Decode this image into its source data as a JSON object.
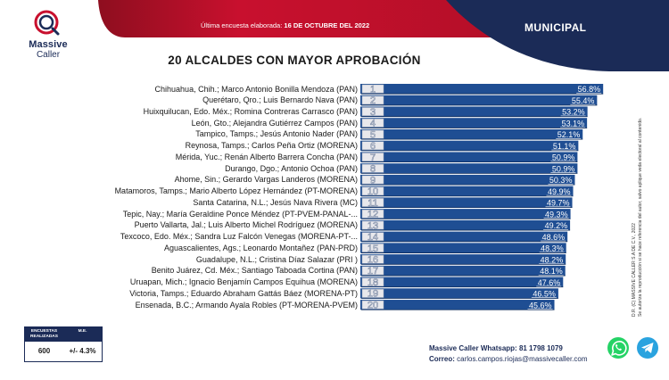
{
  "header": {
    "caption_text": "Última encuesta elaborada:",
    "caption_date": "16 DE OCTUBRE DEL 2022",
    "scope": "MUNICIPAL",
    "colors": {
      "red": "#c8102e",
      "navy": "#1b2b57",
      "bar": "#1f4e93"
    }
  },
  "logo": {
    "line1": "Massive",
    "line2": "Caller",
    "icon": "logo-icon"
  },
  "title": "20 ALCALDES CON MAYOR APROBACIÓN",
  "side_note": {
    "line1": "D.R. (C) MASSIVE CALLER S.A DE C.V., 2022",
    "line2": "Se autoriza la reproducción si se hace referencia del autor, salvo aplique veda electoral al contenido."
  },
  "survey": {
    "col1_label": "ENCUESTAS REALIZADAS",
    "col2_label": "M.E.",
    "col1_value": "600",
    "col2_value": "+/- 4.3%"
  },
  "contact": {
    "whatsapp_label": "Massive Caller Whatsapp:",
    "whatsapp_number": "81 1798 1079",
    "email_label": "Correo:",
    "email_value": "carlos.campos.riojas@massivecaller.com",
    "icons": [
      "whatsapp-icon",
      "telegram-icon"
    ]
  },
  "chart_data": {
    "type": "bar",
    "orientation": "horizontal",
    "title": "20 ALCALDES CON MAYOR APROBACIÓN",
    "categories": [
      "Chihuahua, Chih.; Marco Antonio Bonilla Mendoza (PAN)",
      "Querétaro, Qro.; Luis Bernardo Nava (PAN)",
      "Huixquilucan, Edo. Méx.; Romina Contreras Carrasco (PAN)",
      "León, Gto.; Alejandra Gutiérrez Campos (PAN)",
      "Tampico, Tamps.; Jesús Antonio Nader (PAN)",
      "Reynosa, Tamps.; Carlos Peña Ortiz (MORENA)",
      "Mérida, Yuc.; Renán Alberto Barrera Concha (PAN)",
      "Durango, Dgo.; Antonio Ochoa (PAN)",
      "Ahome, Sin.; Gerardo Vargas Landeros (MORENA)",
      "Matamoros, Tamps.; Mario Alberto López Hernández (PT-MORENA)",
      "Santa Catarina, N.L.; Jesús Nava Rivera (MC)",
      "Tepic, Nay.; María Geraldine Ponce Méndez (PT-PVEM-PANAL-...",
      "Puerto Vallarta, Jal.; Luis Alberto Michel Rodríguez (MORENA)",
      "Texcoco, Edo. Méx.; Sandra Luz Falcón Venegas (MORENA-PT-...",
      "Aguascalientes, Ags.; Leonardo Montañez (PAN-PRD)",
      "Guadalupe, N.L.; Cristina Díaz Salazar (PRI )",
      "Benito Juárez, Cd. Méx.; Santiago Taboada Cortina (PAN)",
      "Uruapan, Mich.; Ignacio Benjamín Campos Equihua (MORENA)",
      "Victoria, Tamps.; Eduardo Abraham Gattás Báez (MORENA-PT)",
      "Ensenada, B.C.; Armando Ayala Robles (PT-MORENA-PVEM)"
    ],
    "ranks": [
      "1",
      "2",
      "3",
      "4",
      "5",
      "6",
      "7",
      "8",
      "9",
      "10",
      "11",
      "12",
      "13",
      "14",
      "15",
      "16",
      "17",
      "18",
      "19",
      "20"
    ],
    "values": [
      56.8,
      55.4,
      53.2,
      53.1,
      52.1,
      51.1,
      50.9,
      50.9,
      50.3,
      49.9,
      49.7,
      49.3,
      49.2,
      48.6,
      48.3,
      48.2,
      48.1,
      47.6,
      46.5,
      45.6
    ],
    "value_labels": [
      "56.8%",
      "55.4%",
      "53.2%",
      "53.1%",
      "52.1%",
      "51.1%",
      "50.9%",
      "50.9%",
      "50.3%",
      "49.9%",
      "49.7%",
      "49.3%",
      "49.2%",
      "48.6%",
      "48.3%",
      "48.2%",
      "48.1%",
      "47.6%",
      "46.5%",
      "45.6%"
    ],
    "unit": "%",
    "grid": false,
    "legend": "none"
  }
}
